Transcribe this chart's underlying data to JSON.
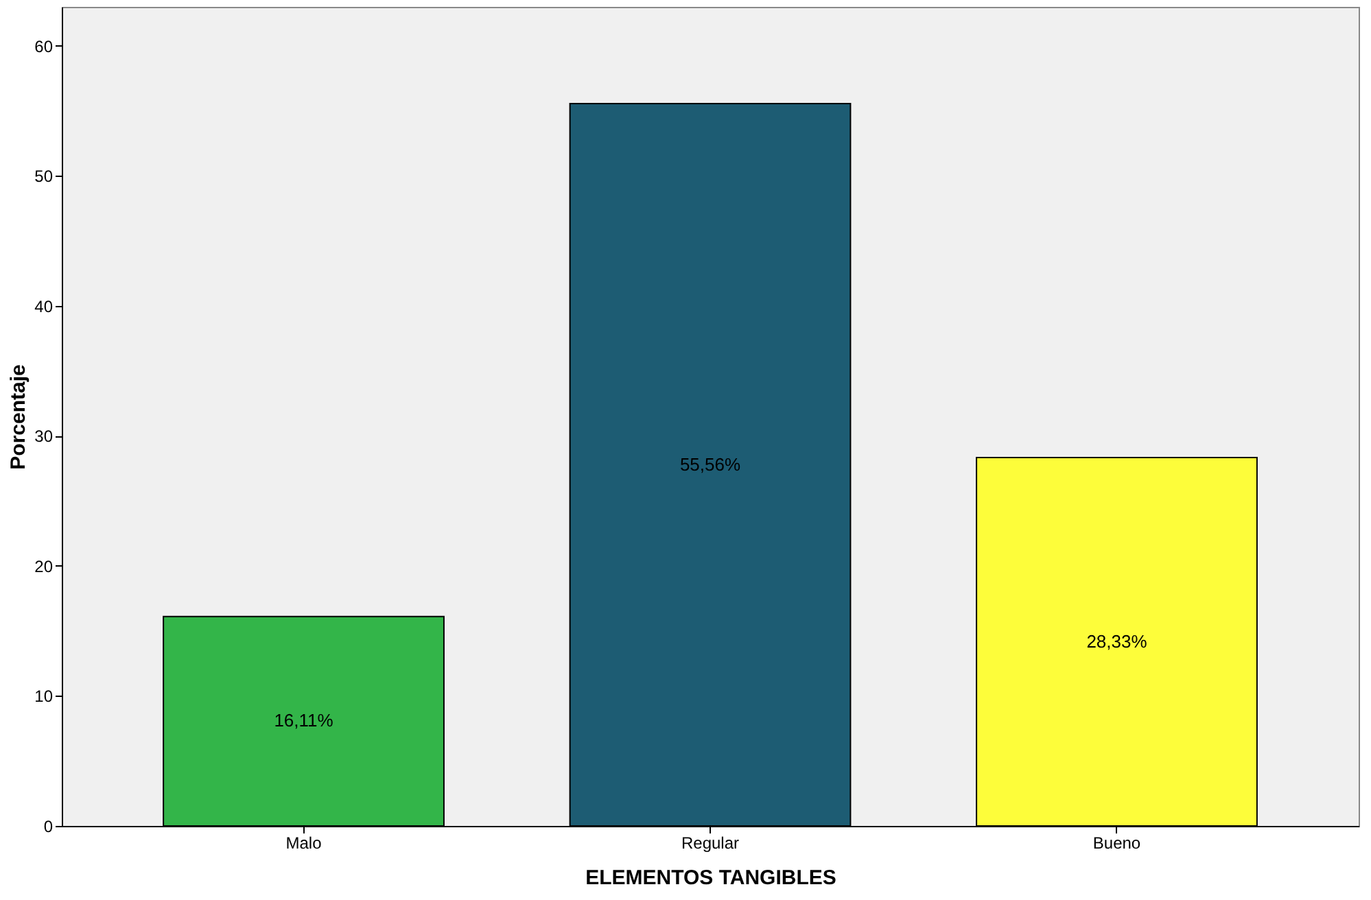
{
  "chart_data": {
    "type": "bar",
    "xlabel": "ELEMENTOS TANGIBLES",
    "ylabel": "Porcentaje",
    "categories": [
      "Malo",
      "Regular",
      "Bueno"
    ],
    "values": [
      16.11,
      55.56,
      28.33
    ],
    "colors": [
      "#33b549",
      "#1d5c73",
      "#fdfd3a"
    ],
    "value_labels": [
      "16,11%",
      "55,56%",
      "28,33%"
    ],
    "ylim": [
      0,
      63
    ],
    "yticks": [
      0,
      10,
      20,
      30,
      40,
      50,
      60
    ],
    "grid": false
  }
}
